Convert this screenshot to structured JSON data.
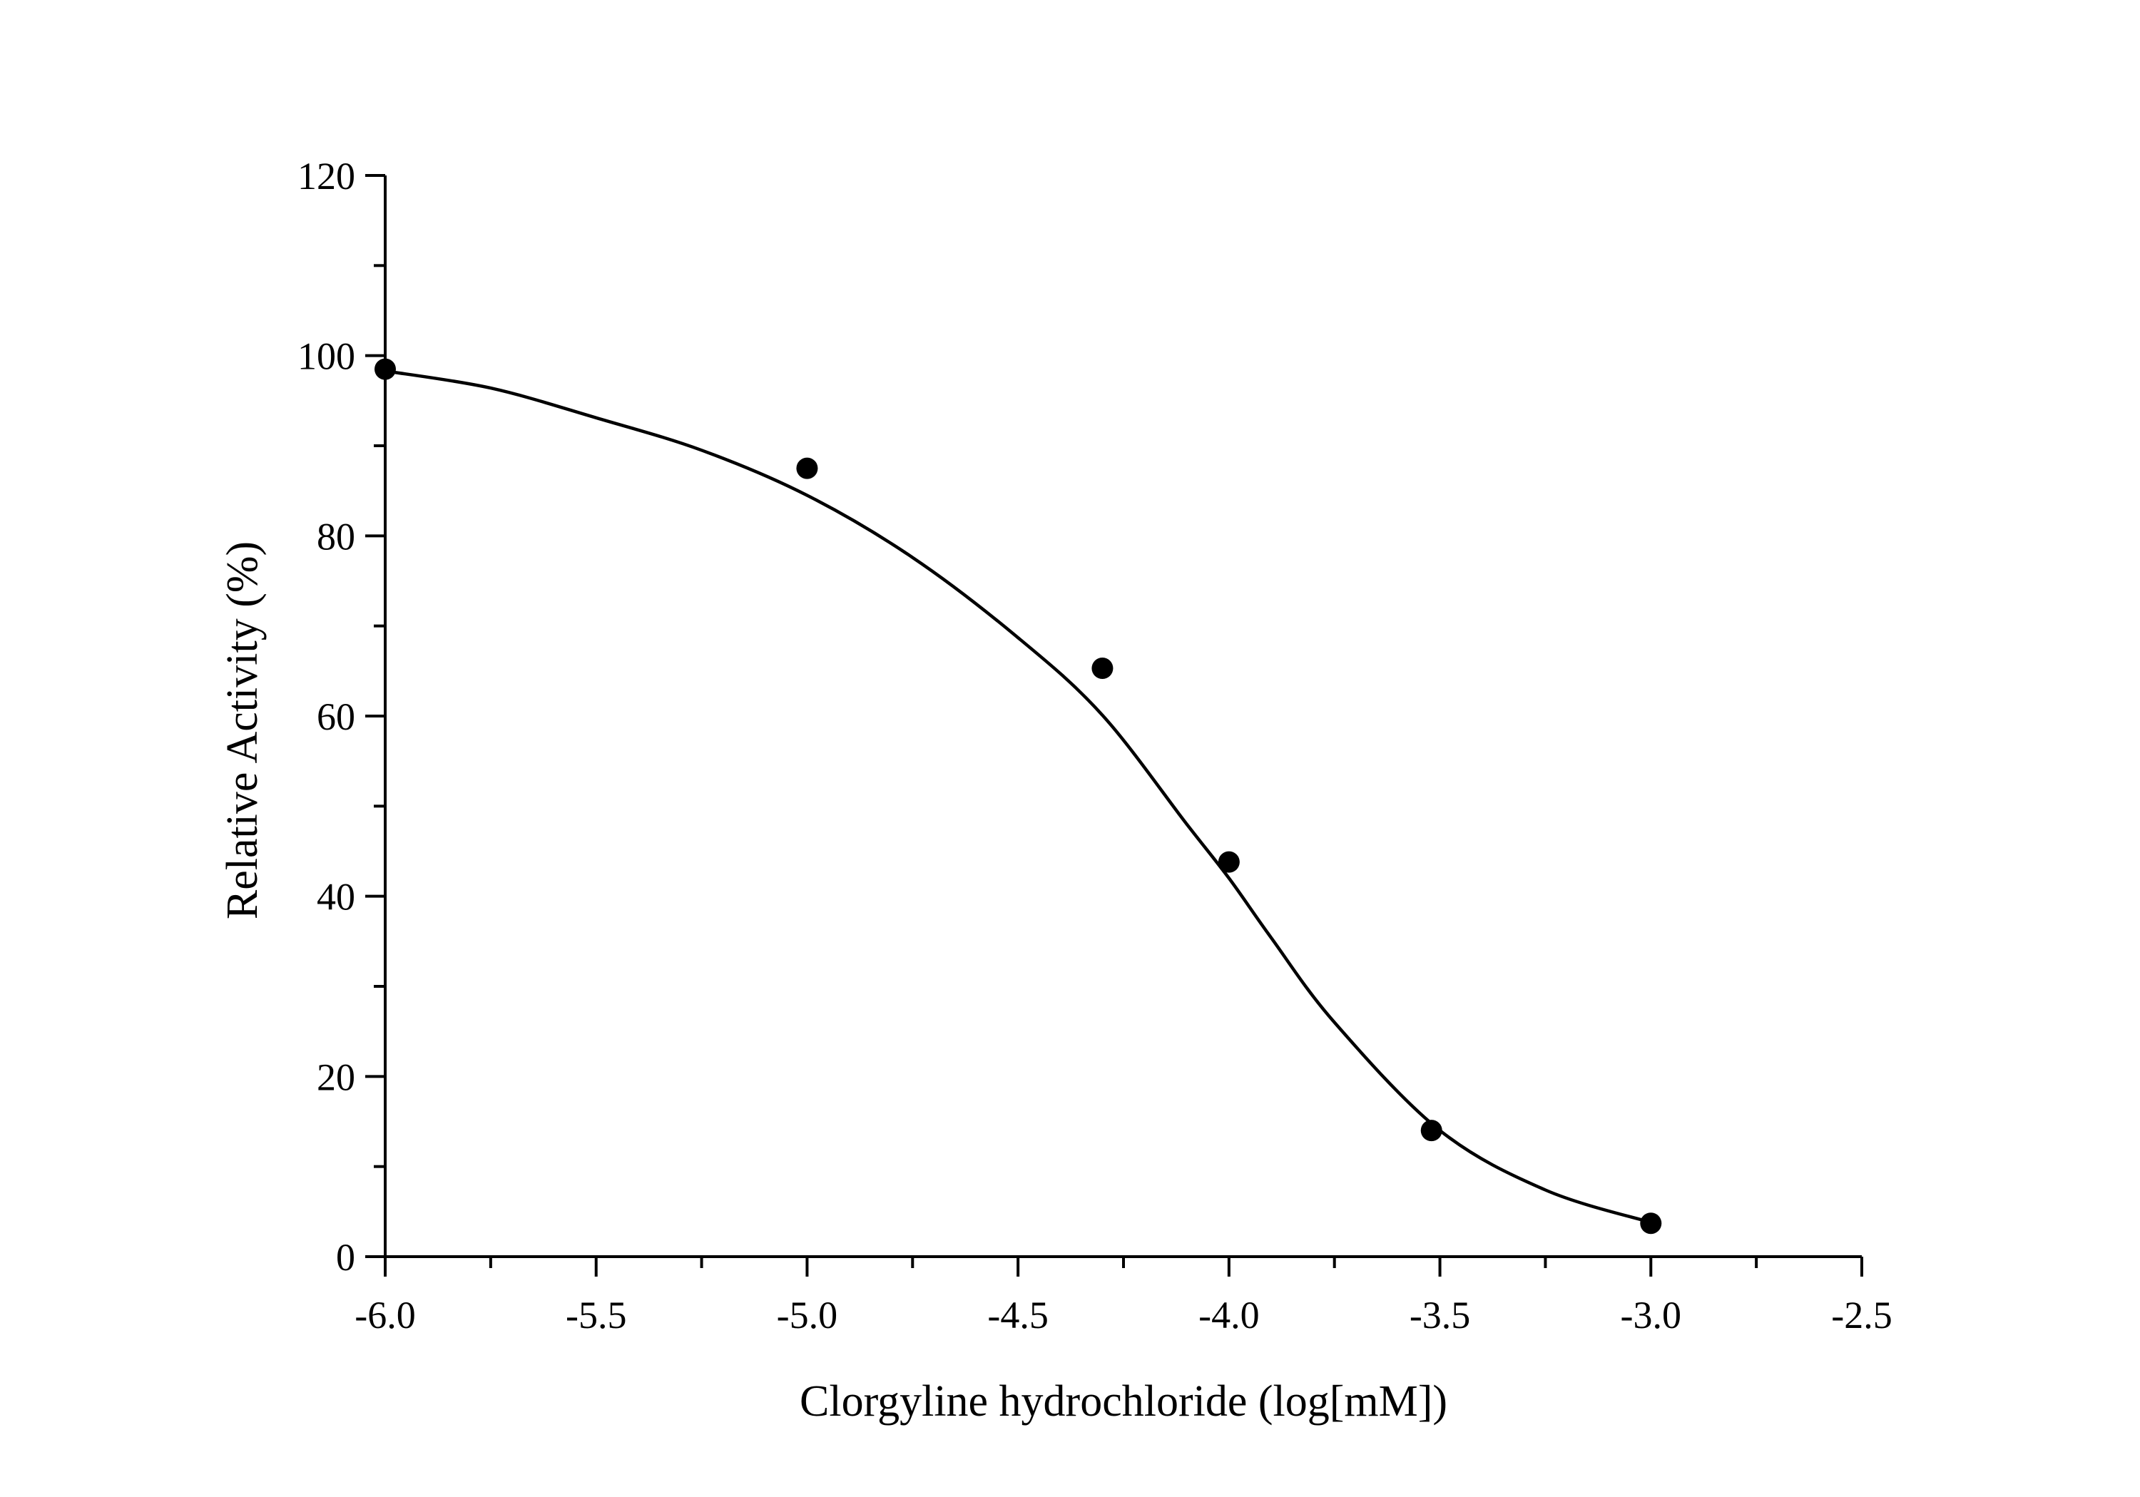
{
  "chart_data": {
    "type": "scatter",
    "title": "",
    "xlabel": "Clorgyline hydrochloride (log[mM])",
    "ylabel": "Relative Activity (%)",
    "xlim": [
      -6.0,
      -2.5
    ],
    "ylim": [
      0,
      120
    ],
    "x_ticks": [
      -6.0,
      -5.5,
      -5.0,
      -4.5,
      -4.0,
      -3.5,
      -3.0,
      -2.5
    ],
    "x_tick_labels": [
      "-6.0",
      "-5.5",
      "-5.0",
      "-4.5",
      "-4.0",
      "-3.5",
      "-3.0",
      "-2.5"
    ],
    "y_ticks": [
      0,
      20,
      40,
      60,
      80,
      100,
      120
    ],
    "y_tick_labels": [
      "0",
      "20",
      "40",
      "60",
      "80",
      "100",
      "120"
    ],
    "grid": false,
    "legend": "none",
    "series": [
      {
        "kind": "points",
        "color": "#000000",
        "points": [
          {
            "x": -6.0,
            "y": 98.5
          },
          {
            "x": -5.0,
            "y": 87.5
          },
          {
            "x": -4.3,
            "y": 65.3
          },
          {
            "x": -4.0,
            "y": 43.8
          },
          {
            "x": -3.52,
            "y": 14.0
          },
          {
            "x": -3.0,
            "y": 3.7
          }
        ]
      },
      {
        "kind": "fit",
        "color": "#000000",
        "points": [
          {
            "x": -6.0,
            "y": 98.3
          },
          {
            "x": -5.75,
            "y": 96.4
          },
          {
            "x": -5.5,
            "y": 93.1
          },
          {
            "x": -5.25,
            "y": 89.5
          },
          {
            "x": -5.0,
            "y": 84.5
          },
          {
            "x": -4.75,
            "y": 77.6
          },
          {
            "x": -4.5,
            "y": 68.7
          },
          {
            "x": -4.3,
            "y": 60.1
          },
          {
            "x": -4.1,
            "y": 48.0
          },
          {
            "x": -4.0,
            "y": 42.0
          },
          {
            "x": -3.9,
            "y": 35.4
          },
          {
            "x": -3.75,
            "y": 26.0
          },
          {
            "x": -3.5,
            "y": 14.0
          },
          {
            "x": -3.25,
            "y": 7.4
          },
          {
            "x": -3.0,
            "y": 3.8
          }
        ]
      }
    ]
  }
}
